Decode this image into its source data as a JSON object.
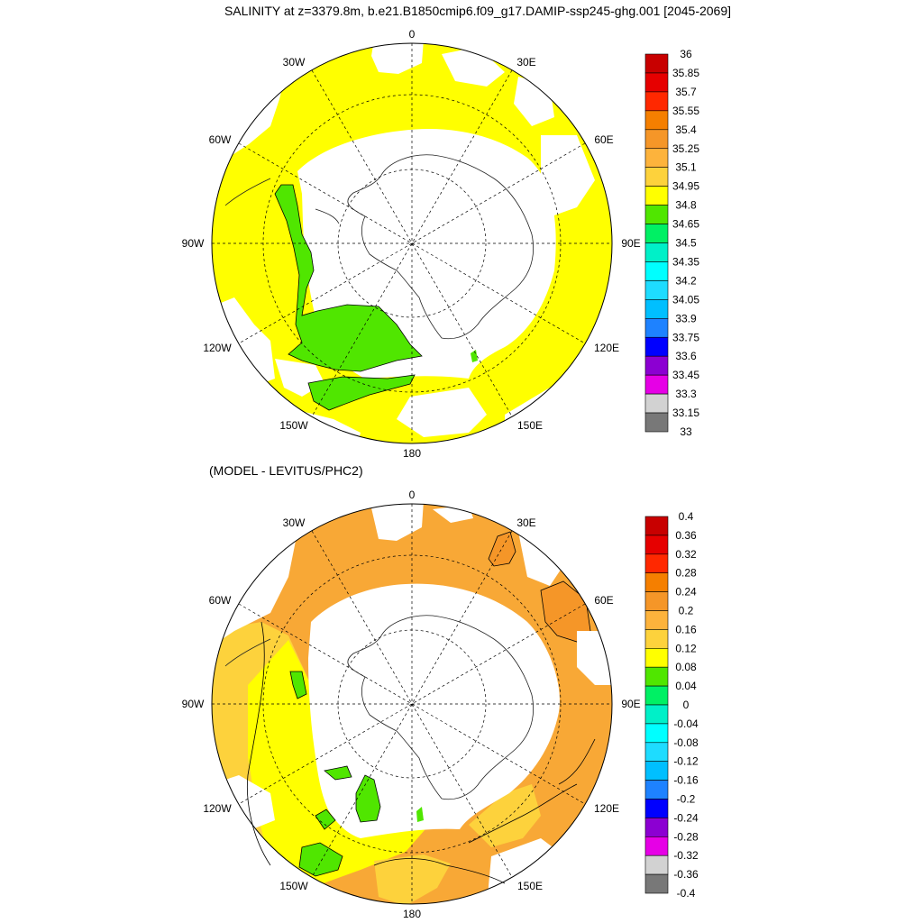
{
  "title": "SALINITY at z=3379.8m, b.e21.B1850cmip6.f09_g17.DAMIP-ssp245-ghg.001 [2045-2069]",
  "diff_title": "(MODEL - LEVITUS/PHC2)",
  "longitude_labels": {
    "n0": "0",
    "n30w": "30W",
    "n30e": "30E",
    "n60w": "60W",
    "n60e": "60E",
    "n90w": "90W",
    "n90e": "90E",
    "n120w": "120W",
    "n120e": "120E",
    "n150w": "150W",
    "n150e": "150E",
    "n180": "180"
  },
  "top_colorbar": {
    "labels": [
      "36",
      "35.85",
      "35.7",
      "35.55",
      "35.4",
      "35.25",
      "35.1",
      "34.95",
      "34.8",
      "34.65",
      "34.5",
      "34.35",
      "34.2",
      "34.05",
      "33.9",
      "33.75",
      "33.6",
      "33.45",
      "33.3",
      "33.15",
      "33"
    ],
    "colors": [
      "#c80000",
      "#e60000",
      "#ff2800",
      "#f57f00",
      "#f59628",
      "#fdb33c",
      "#fdd23c",
      "#ffff00",
      "#50e600",
      "#00f064",
      "#00f0c8",
      "#00ffff",
      "#1edcff",
      "#00bfff",
      "#1e82ff",
      "#0000ff",
      "#8c00d2",
      "#e600e6",
      "#d2d2d2",
      "#787878"
    ]
  },
  "bottom_colorbar": {
    "labels": [
      "0.4",
      "0.36",
      "0.32",
      "0.28",
      "0.24",
      "0.2",
      "0.16",
      "0.12",
      "0.08",
      "0.04",
      "0",
      "-0.04",
      "-0.08",
      "-0.12",
      "-0.16",
      "-0.2",
      "-0.24",
      "-0.28",
      "-0.32",
      "-0.36",
      "-0.4"
    ],
    "colors": [
      "#c80000",
      "#e60000",
      "#ff2800",
      "#f57f00",
      "#f59628",
      "#fdb33c",
      "#fdd23c",
      "#ffff00",
      "#50e600",
      "#00f064",
      "#00f0c8",
      "#00ffff",
      "#1edcff",
      "#00bfff",
      "#1e82ff",
      "#0000ff",
      "#8c00d2",
      "#e600e6",
      "#d2d2d2",
      "#787878"
    ]
  },
  "map_colors": {
    "top_ocean": "#ffff00",
    "top_green": "#50e600",
    "bottom_orange": "#f8a836",
    "bottom_lightorange": "#fdd23c",
    "bottom_yellow": "#ffff00",
    "bottom_green": "#50e600",
    "bottom_darkorange": "#f59628"
  }
}
